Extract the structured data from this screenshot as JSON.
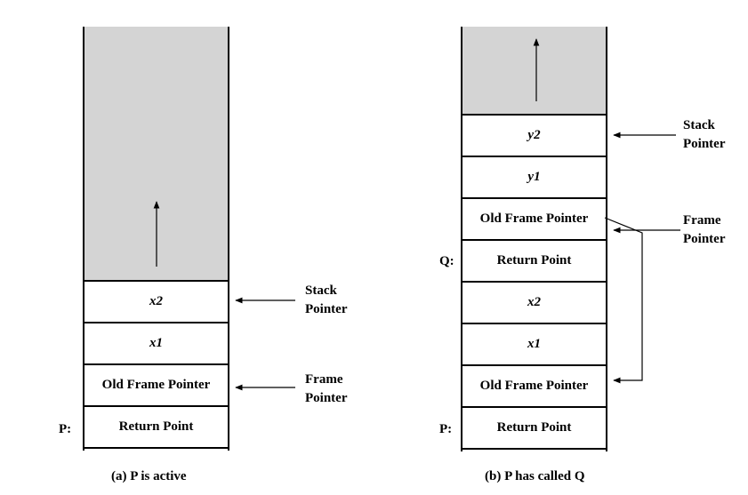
{
  "diagram_a": {
    "cells": [
      {
        "text": "x2",
        "italic": true
      },
      {
        "text": "x1",
        "italic": true
      },
      {
        "text": "Old Frame Pointer",
        "italic": false
      },
      {
        "text": "Return Point",
        "italic": false
      }
    ],
    "stack_pointer_label": [
      "Stack",
      "Pointer"
    ],
    "frame_pointer_label": [
      "Frame",
      "Pointer"
    ],
    "marker_p": "P:",
    "caption": "(a) P is active"
  },
  "diagram_b": {
    "cells": [
      {
        "text": "y2",
        "italic": true
      },
      {
        "text": "y1",
        "italic": true
      },
      {
        "text": "Old Frame Pointer",
        "italic": false
      },
      {
        "text": "Return Point",
        "italic": false
      },
      {
        "text": "x2",
        "italic": true
      },
      {
        "text": "x1",
        "italic": true
      },
      {
        "text": "Old Frame Pointer",
        "italic": false
      },
      {
        "text": "Return Point",
        "italic": false
      }
    ],
    "stack_pointer_label": [
      "Stack",
      "Pointer"
    ],
    "frame_pointer_label": [
      "Frame",
      "Pointer"
    ],
    "marker_q": "Q:",
    "marker_p": "P:",
    "caption": "(b) P has called Q"
  }
}
